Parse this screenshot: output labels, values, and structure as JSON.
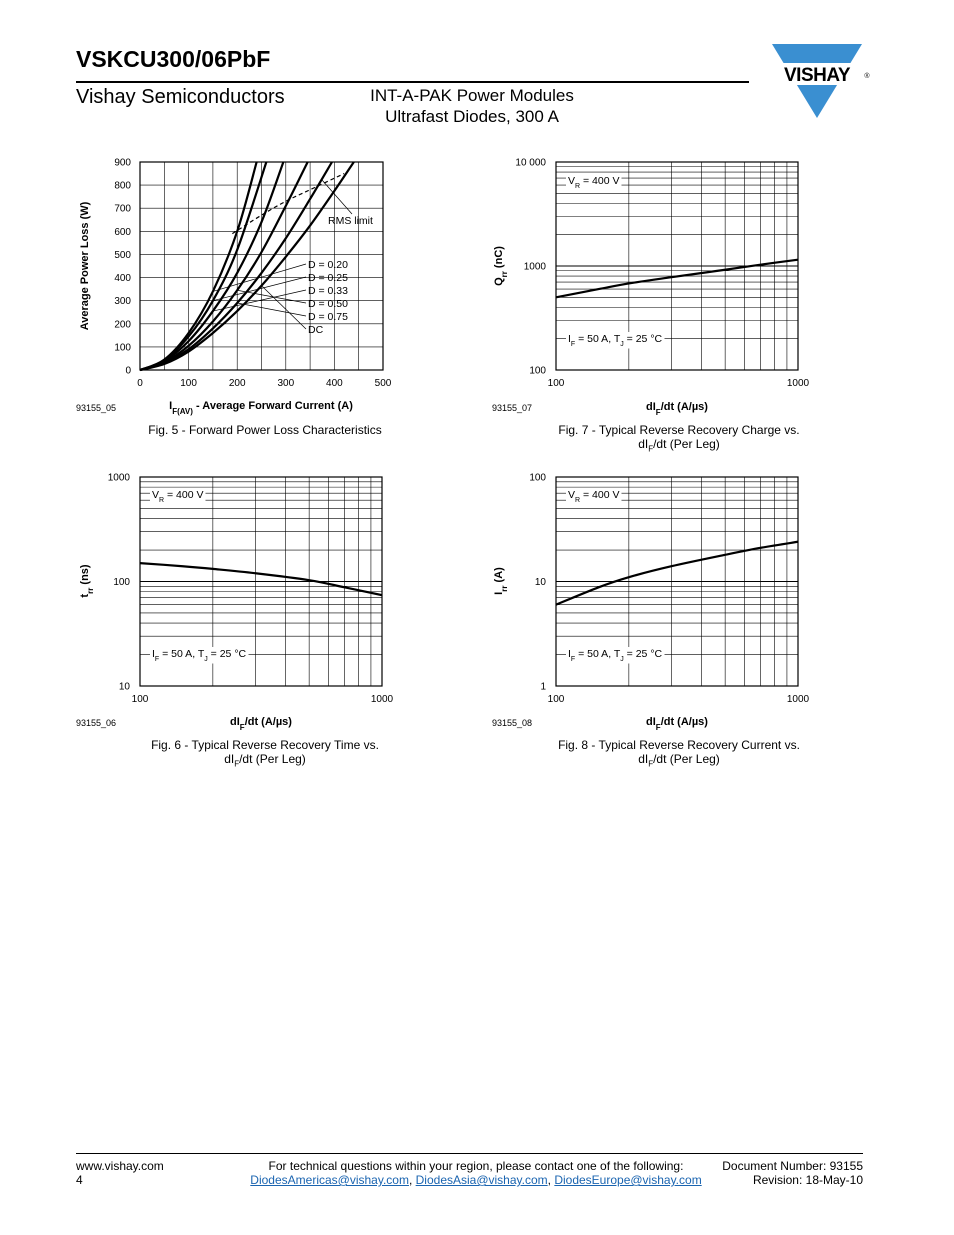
{
  "header": {
    "part_number": "VSKCU300/06PbF",
    "company": "Vishay Semiconductors",
    "subtitle_line1": "INT-A-PAK Power Modules",
    "subtitle_line2": "Ultrafast Diodes, 300 A",
    "logo_text": "VISHAY",
    "logo_reg": "®",
    "brand_color": "#3a8fd1"
  },
  "figures": {
    "fig5": {
      "caption": "Fig. 5 - Forward Power Loss Characteristics",
      "code": "93155_05",
      "xlabel_main": "I",
      "xlabel_sub": "F(AV)",
      "xlabel_rest": " - Average Forward Current (A)",
      "ylabel": "Average Power Loss (W)",
      "xticks": [
        "0",
        "100",
        "200",
        "300",
        "400",
        "500"
      ],
      "yticks": [
        "0",
        "100",
        "200",
        "300",
        "400",
        "500",
        "600",
        "700",
        "800",
        "900"
      ],
      "rms_label": "RMS limit",
      "curve_labels": [
        "D = 0.20",
        "D = 0.25",
        "D = 0.33",
        "D = 0.50",
        "D = 0.75",
        "DC"
      ]
    },
    "fig7": {
      "caption1": "Fig. 7 - Typical Reverse Recovery Charge vs.",
      "caption2_a": "dI",
      "caption2_sub": "F",
      "caption2_b": "/dt (Per Leg)",
      "code": "93155_07",
      "xlabel_a": "dI",
      "xlabel_sub": "F",
      "xlabel_b": "/dt (A/µs)",
      "ylabel_a": "Q",
      "ylabel_sub": "rr",
      "ylabel_b": " (nC)",
      "xticks": [
        "100",
        "1000"
      ],
      "yticks": [
        "100",
        "1000",
        "10 000"
      ],
      "ann_top_a": "V",
      "ann_top_sub": "R",
      "ann_top_b": " = 400 V",
      "ann_bot_a": "I",
      "ann_bot_sub1": "F",
      "ann_bot_b": " = 50 A, T",
      "ann_bot_sub2": "J",
      "ann_bot_c": " = 25 °C"
    },
    "fig6": {
      "caption1": "Fig. 6 - Typical Reverse Recovery Time vs.",
      "caption2_a": "dI",
      "caption2_sub": "F",
      "caption2_b": "/dt (Per Leg)",
      "code": "93155_06",
      "xlabel_a": "dI",
      "xlabel_sub": "F",
      "xlabel_b": "/dt (A/µs)",
      "ylabel_a": "t",
      "ylabel_sub": "rr",
      "ylabel_b": " (ns)",
      "xticks": [
        "100",
        "1000"
      ],
      "yticks": [
        "10",
        "100",
        "1000"
      ],
      "ann_top_a": "V",
      "ann_top_sub": "R",
      "ann_top_b": " = 400 V",
      "ann_bot_a": "I",
      "ann_bot_sub1": "F",
      "ann_bot_b": " = 50 A, T",
      "ann_bot_sub2": "J",
      "ann_bot_c": " = 25 °C"
    },
    "fig8": {
      "caption1": "Fig. 8 - Typical Reverse Recovery Current vs.",
      "caption2_a": "dI",
      "caption2_sub": "F",
      "caption2_b": "/dt (Per Leg)",
      "code": "93155_08",
      "xlabel_a": "dI",
      "xlabel_sub": "F",
      "xlabel_b": "/dt (A/µs)",
      "ylabel_a": "I",
      "ylabel_sub": "rr",
      "ylabel_b": " (A)",
      "xticks": [
        "100",
        "1000"
      ],
      "yticks": [
        "1",
        "10",
        "100"
      ],
      "ann_top_a": "V",
      "ann_top_sub": "R",
      "ann_top_b": " = 400 V",
      "ann_bot_a": "I",
      "ann_bot_sub1": "F",
      "ann_bot_b": " = 50 A, T",
      "ann_bot_sub2": "J",
      "ann_bot_c": " = 25 °C"
    }
  },
  "chart_data": [
    {
      "id": "fig5",
      "type": "line",
      "xlabel": "IF(AV) - Average Forward Current (A)",
      "ylabel": "Average Power Loss (W)",
      "xlim": [
        0,
        500
      ],
      "ylim": [
        0,
        900
      ],
      "grid": true,
      "series": [
        {
          "name": "D = 0.20",
          "x": [
            0,
            50,
            100,
            150,
            200,
            240
          ],
          "y": [
            0,
            45,
            160,
            340,
            600,
            900
          ]
        },
        {
          "name": "D = 0.25",
          "x": [
            0,
            50,
            100,
            150,
            200,
            260
          ],
          "y": [
            0,
            42,
            145,
            300,
            520,
            900
          ]
        },
        {
          "name": "D = 0.33",
          "x": [
            0,
            50,
            100,
            150,
            200,
            250,
            295
          ],
          "y": [
            0,
            38,
            125,
            255,
            420,
            640,
            900
          ]
        },
        {
          "name": "D = 0.50",
          "x": [
            0,
            50,
            100,
            150,
            200,
            250,
            300,
            345
          ],
          "y": [
            0,
            33,
            105,
            210,
            345,
            510,
            710,
            900
          ]
        },
        {
          "name": "D = 0.75",
          "x": [
            0,
            50,
            100,
            150,
            200,
            250,
            300,
            350,
            395
          ],
          "y": [
            0,
            29,
            90,
            180,
            290,
            420,
            570,
            740,
            900
          ]
        },
        {
          "name": "DC",
          "x": [
            0,
            50,
            100,
            150,
            200,
            250,
            300,
            350,
            400,
            440
          ],
          "y": [
            0,
            26,
            80,
            160,
            255,
            365,
            490,
            625,
            775,
            900
          ]
        },
        {
          "name": "RMS limit",
          "x": [
            190,
            250,
            300,
            350,
            420
          ],
          "y": [
            590,
            670,
            730,
            780,
            850
          ]
        }
      ]
    },
    {
      "id": "fig7",
      "type": "line",
      "xlabel": "dIF/dt (A/µs)",
      "ylabel": "Qrr (nC)",
      "xscale": "log",
      "yscale": "log",
      "xlim": [
        100,
        1000
      ],
      "ylim": [
        100,
        10000
      ],
      "grid": true,
      "series": [
        {
          "x": [
            100,
            150,
            200,
            300,
            500,
            700,
            1000
          ],
          "y": [
            500,
            600,
            680,
            780,
            920,
            1030,
            1150
          ]
        }
      ]
    },
    {
      "id": "fig6",
      "type": "line",
      "xlabel": "dIF/dt (A/µs)",
      "ylabel": "trr (ns)",
      "xscale": "log",
      "yscale": "log",
      "xlim": [
        100,
        1000
      ],
      "ylim": [
        10,
        1000
      ],
      "grid": true,
      "series": [
        {
          "x": [
            100,
            150,
            200,
            300,
            500,
            700,
            1000
          ],
          "y": [
            150,
            140,
            132,
            120,
            103,
            88,
            74
          ]
        }
      ]
    },
    {
      "id": "fig8",
      "type": "line",
      "xlabel": "dIF/dt (A/µs)",
      "ylabel": "Irr (A)",
      "xscale": "log",
      "yscale": "log",
      "xlim": [
        100,
        1000
      ],
      "ylim": [
        1,
        100
      ],
      "grid": true,
      "series": [
        {
          "x": [
            100,
            150,
            200,
            300,
            500,
            700,
            1000
          ],
          "y": [
            6,
            8.8,
            11,
            14,
            18,
            21,
            24
          ]
        }
      ]
    }
  ],
  "footer": {
    "website": "www.vishay.com",
    "page_number": "4",
    "contact_text": "For technical questions within your region, please contact one of the following:",
    "email1": "DiodesAmericas@vishay.com",
    "email2": "DiodesAsia@vishay.com",
    "email3": "DiodesEurope@vishay.com",
    "sep": ", ",
    "doc_number": "Document Number: 93155",
    "revision": "Revision: 18-May-10"
  }
}
